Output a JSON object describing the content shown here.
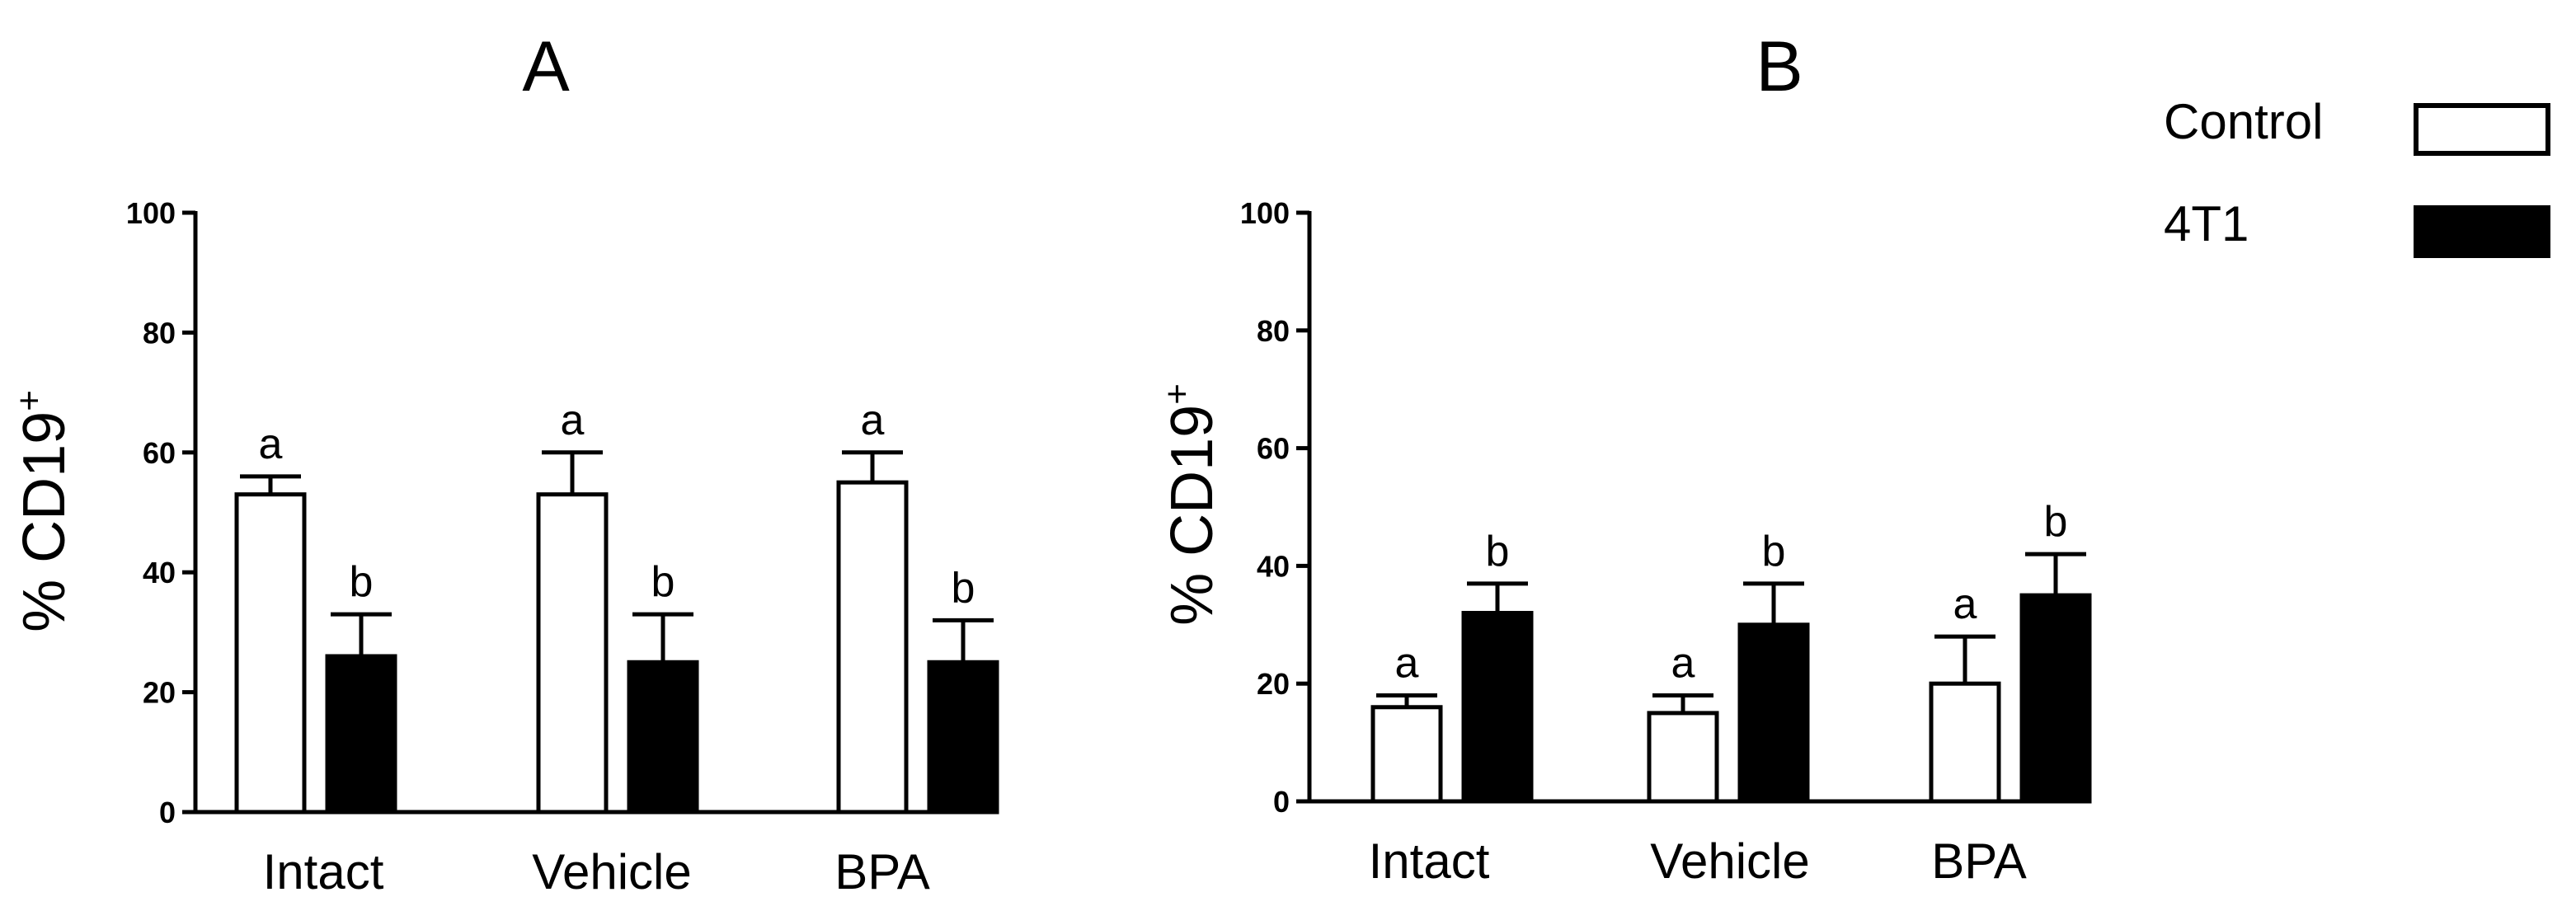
{
  "chart_data": [
    {
      "type": "bar",
      "title": "A",
      "ylabel": "% CD19",
      "ylabel_sup": "+",
      "ylim": [
        0,
        100
      ],
      "yticks": [
        0,
        20,
        40,
        60,
        80,
        100
      ],
      "categories": [
        "Intact",
        "Vehicle",
        "BPA"
      ],
      "series": [
        {
          "name": "Control",
          "values": [
            53,
            53,
            55
          ],
          "errors": [
            3,
            7,
            5
          ],
          "sig": [
            "a",
            "a",
            "a"
          ]
        },
        {
          "name": "4T1",
          "values": [
            26,
            25,
            25
          ],
          "errors": [
            7,
            8,
            7
          ],
          "sig": [
            "b",
            "b",
            "b"
          ]
        }
      ]
    },
    {
      "type": "bar",
      "title": "B",
      "ylabel": "% CD19",
      "ylabel_sup": "+",
      "ylim": [
        0,
        100
      ],
      "yticks": [
        0,
        20,
        40,
        60,
        80,
        100
      ],
      "categories": [
        "Intact",
        "Vehicle",
        "BPA"
      ],
      "series": [
        {
          "name": "Control",
          "values": [
            16,
            15,
            20
          ],
          "errors": [
            2,
            3,
            8
          ],
          "sig": [
            "a",
            "a",
            "a"
          ]
        },
        {
          "name": "4T1",
          "values": [
            32,
            30,
            35
          ],
          "errors": [
            5,
            7,
            7
          ],
          "sig": [
            "b",
            "b",
            "b"
          ]
        }
      ]
    }
  ],
  "legend": {
    "position": "top-right",
    "items": [
      {
        "label": "Control",
        "fill": "#ffffff"
      },
      {
        "label": "4T1",
        "fill": "#000000"
      }
    ]
  },
  "colors": {
    "control_fill": "#ffffff",
    "treated_fill": "#000000",
    "stroke": "#000000"
  }
}
